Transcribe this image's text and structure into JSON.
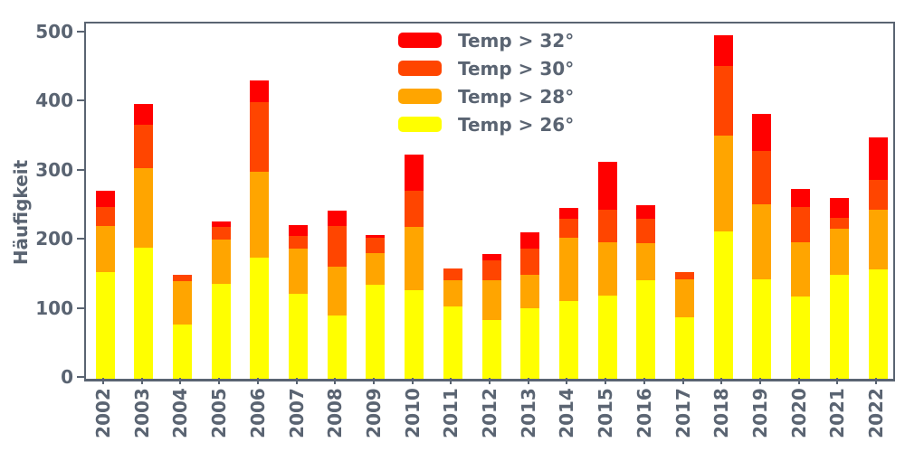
{
  "colors": {
    "red": "#ff0000",
    "orangered": "#ff4500",
    "orange": "#ffa500",
    "yellow": "#ffff00",
    "axis_text": "#5a6472"
  },
  "legend": [
    {
      "label": "Temp > 32°",
      "color": "#ff0000"
    },
    {
      "label": "Temp > 30°",
      "color": "#ff4500"
    },
    {
      "label": "Temp > 28°",
      "color": "#ffa500"
    },
    {
      "label": "Temp > 26°",
      "color": "#ffff00"
    }
  ],
  "chart_data": {
    "type": "bar",
    "stacked": true,
    "title": "",
    "xlabel": "",
    "ylabel": "Häufigkeit",
    "categories": [
      "2002",
      "2003",
      "2004",
      "2005",
      "2006",
      "2007",
      "2008",
      "2009",
      "2010",
      "2011",
      "2012",
      "2013",
      "2014",
      "2015",
      "2016",
      "2017",
      "2018",
      "2019",
      "2020",
      "2021",
      "2022"
    ],
    "series": [
      {
        "name": "Temp > 26°",
        "color": "#ffff00",
        "values": [
          154,
          190,
          78,
          137,
          175,
          123,
          91,
          136,
          128,
          105,
          85,
          102,
          113,
          121,
          142,
          89,
          213,
          144,
          119,
          150,
          158
        ]
      },
      {
        "name": "Temp > 28°",
        "color": "#ffa500",
        "values": [
          67,
          115,
          63,
          65,
          124,
          66,
          71,
          46,
          92,
          37,
          58,
          48,
          91,
          77,
          54,
          55,
          139,
          108,
          79,
          67,
          86
        ]
      },
      {
        "name": "Temp > 30°",
        "color": "#ff4500",
        "values": [
          28,
          63,
          9,
          18,
          101,
          18,
          59,
          22,
          52,
          17,
          29,
          39,
          27,
          46,
          36,
          11,
          100,
          78,
          50,
          16,
          44
        ]
      },
      {
        "name": "Temp > 32°",
        "color": "#ff0000",
        "values": [
          23,
          29,
          0,
          7,
          32,
          16,
          22,
          4,
          53,
          0,
          9,
          23,
          16,
          70,
          19,
          0,
          45,
          53,
          27,
          28,
          61
        ]
      }
    ],
    "totals": [
      272,
      397,
      150,
      227,
      432,
      223,
      243,
      208,
      325,
      159,
      181,
      212,
      247,
      314,
      251,
      155,
      497,
      383,
      275,
      261,
      349
    ],
    "yticks": [
      0,
      100,
      200,
      300,
      400,
      500
    ],
    "ylim": [
      0,
      514
    ],
    "grid": false,
    "legend_position": "upper center",
    "legend_frame": false,
    "x_tick_rotation": 90
  }
}
